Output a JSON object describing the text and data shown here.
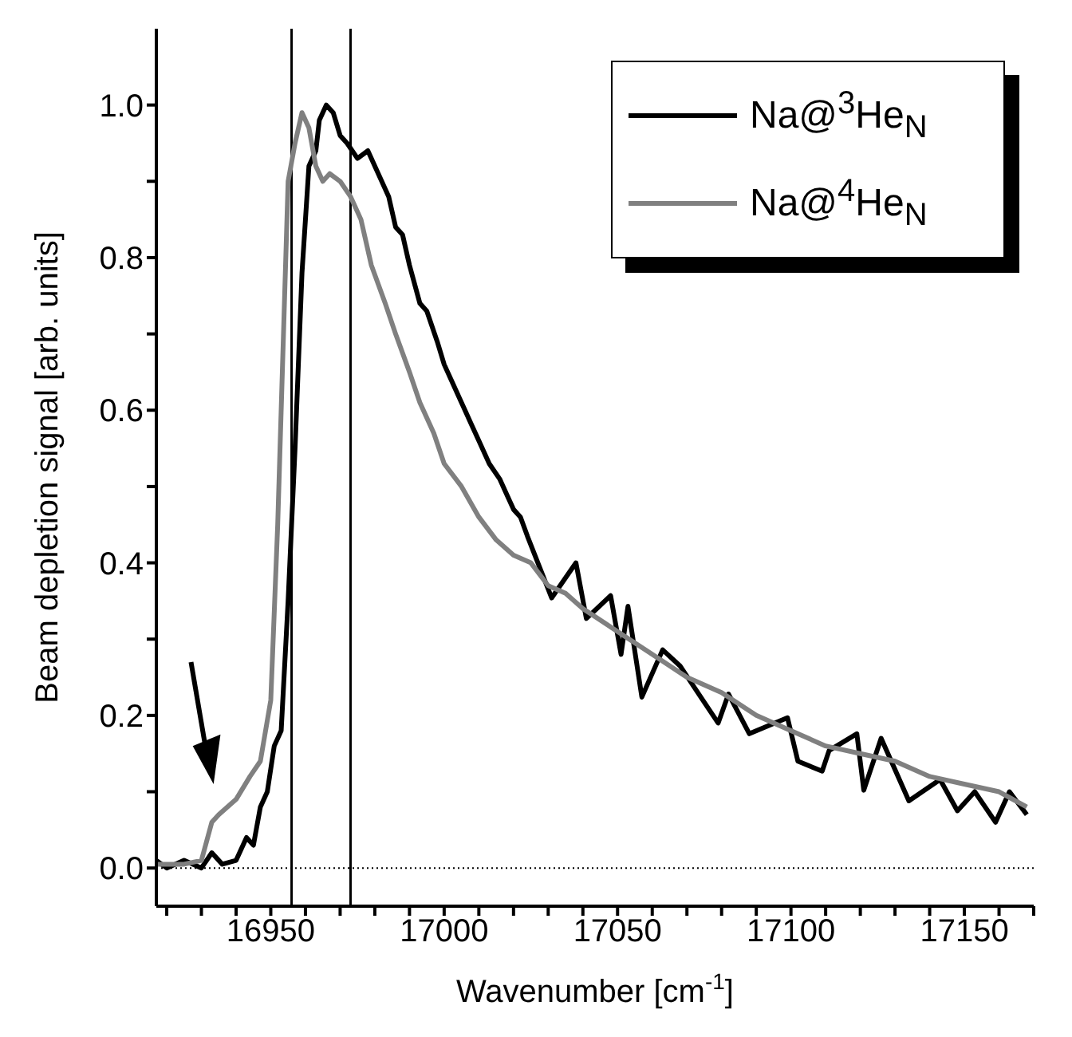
{
  "chart_data": {
    "type": "line",
    "xlabel": "Wavenumber [cm$^{-1}$]",
    "ylabel": "Beam depletion signal  [arb. units]",
    "xlim": [
      16917,
      17170
    ],
    "ylim": [
      -0.05,
      1.1
    ],
    "xticks": [
      {
        "value": 16920,
        "label": null
      },
      {
        "value": 16930,
        "label": null
      },
      {
        "value": 16940,
        "label": null
      },
      16950,
      {
        "value": 16960,
        "label": null
      },
      {
        "value": 16970,
        "label": null
      },
      {
        "value": 16980,
        "label": null
      },
      {
        "value": 16990,
        "label": null
      },
      17000,
      {
        "value": 17010,
        "label": null
      },
      {
        "value": 17020,
        "label": null
      },
      {
        "value": 17030,
        "label": null
      },
      {
        "value": 17040,
        "label": null
      },
      17050,
      {
        "value": 17060,
        "label": null
      },
      {
        "value": 17070,
        "label": null
      },
      {
        "value": 17080,
        "label": null
      },
      {
        "value": 17090,
        "label": null
      },
      17100,
      {
        "value": 17110,
        "label": null
      },
      {
        "value": 17120,
        "label": null
      },
      {
        "value": 17130,
        "label": null
      },
      {
        "value": 17140,
        "label": null
      },
      17150,
      {
        "value": 17160,
        "label": null
      },
      {
        "value": 17170,
        "label": null
      }
    ],
    "yticks": [
      {
        "value": 0,
        "label": "0.0"
      },
      {
        "value": 0.1,
        "label": null
      },
      0.2,
      {
        "value": 0.3,
        "label": null
      },
      0.4,
      {
        "value": 0.5,
        "label": null
      },
      0.6,
      {
        "value": 0.7,
        "label": null
      },
      0.8,
      {
        "value": 0.9,
        "label": null
      },
      {
        "value": 1,
        "label": "1.0"
      }
    ],
    "grid": false,
    "legend": "top right",
    "marker": "none",
    "line_style": "solid",
    "ref_lines": [
      {
        "axis": "x",
        "value": 16956,
        "color": "#000000",
        "line_style": "solid"
      },
      {
        "axis": "x",
        "value": 16973,
        "color": "#000000",
        "line_style": "solid"
      },
      {
        "axis": "y",
        "value": 0,
        "color": "#000000",
        "line_style": "dotted"
      }
    ],
    "series": [
      {
        "name": "Na@$^{3}$He$_{N}$",
        "color": "#000000",
        "x": [
          16917,
          16920,
          16925,
          16930,
          16933,
          16936,
          16940,
          16943,
          16945,
          16947,
          16949,
          16951,
          16953,
          16955,
          16957,
          16959,
          16961,
          16963,
          16964,
          16966,
          16968,
          16970,
          16972,
          16975,
          16978,
          16981,
          16984,
          16986,
          16988,
          16990,
          16993,
          16995,
          16998,
          17000,
          17002,
          17005,
          17008,
          17010,
          17013,
          17016,
          17018,
          17020,
          17022,
          17024,
          17031,
          17038,
          17041,
          17048,
          17051,
          17053,
          17057,
          17063,
          17068,
          17074,
          17079,
          17082,
          17088,
          17099,
          17102,
          17109,
          17111,
          17119,
          17121,
          17126,
          17134,
          17143,
          17148,
          17153,
          17159,
          17163,
          17168
        ],
        "values": [
          0.01,
          0.0,
          0.01,
          0.0,
          0.02,
          0.005,
          0.01,
          0.04,
          0.03,
          0.08,
          0.1,
          0.16,
          0.18,
          0.35,
          0.55,
          0.78,
          0.92,
          0.94,
          0.98,
          1.0,
          0.99,
          0.96,
          0.95,
          0.93,
          0.94,
          0.91,
          0.88,
          0.84,
          0.83,
          0.79,
          0.74,
          0.73,
          0.69,
          0.66,
          0.64,
          0.61,
          0.58,
          0.56,
          0.53,
          0.51,
          0.49,
          0.47,
          0.46,
          0.435,
          0.354,
          0.4,
          0.327,
          0.357,
          0.28,
          0.343,
          0.224,
          0.286,
          0.265,
          0.224,
          0.19,
          0.228,
          0.176,
          0.197,
          0.14,
          0.127,
          0.154,
          0.176,
          0.102,
          0.17,
          0.088,
          0.116,
          0.075,
          0.1,
          0.06,
          0.1,
          0.07
        ]
      },
      {
        "name": "Na@$^{4}$He$_{N}$",
        "color": "#808080",
        "x": [
          16917,
          16925,
          16930,
          16933,
          16935,
          16940,
          16944,
          16947,
          16950,
          16952,
          16954,
          16955,
          16957,
          16959,
          16961,
          16963,
          16965,
          16967,
          16970,
          16973,
          16976,
          16979,
          16983,
          16986,
          16990,
          16993,
          16997,
          17000,
          17005,
          17010,
          17015,
          17020,
          17025,
          17030,
          17035,
          17040,
          17050,
          17060,
          17070,
          17080,
          17090,
          17100,
          17110,
          17120,
          17130,
          17140,
          17150,
          17160,
          17168
        ],
        "values": [
          0.005,
          0.005,
          0.01,
          0.06,
          0.07,
          0.09,
          0.12,
          0.14,
          0.22,
          0.45,
          0.75,
          0.9,
          0.95,
          0.99,
          0.97,
          0.92,
          0.9,
          0.91,
          0.9,
          0.88,
          0.85,
          0.79,
          0.74,
          0.7,
          0.65,
          0.61,
          0.57,
          0.53,
          0.5,
          0.46,
          0.43,
          0.41,
          0.4,
          0.37,
          0.36,
          0.34,
          0.31,
          0.28,
          0.25,
          0.23,
          0.2,
          0.18,
          0.16,
          0.15,
          0.14,
          0.12,
          0.11,
          0.1,
          0.08
        ]
      }
    ]
  }
}
